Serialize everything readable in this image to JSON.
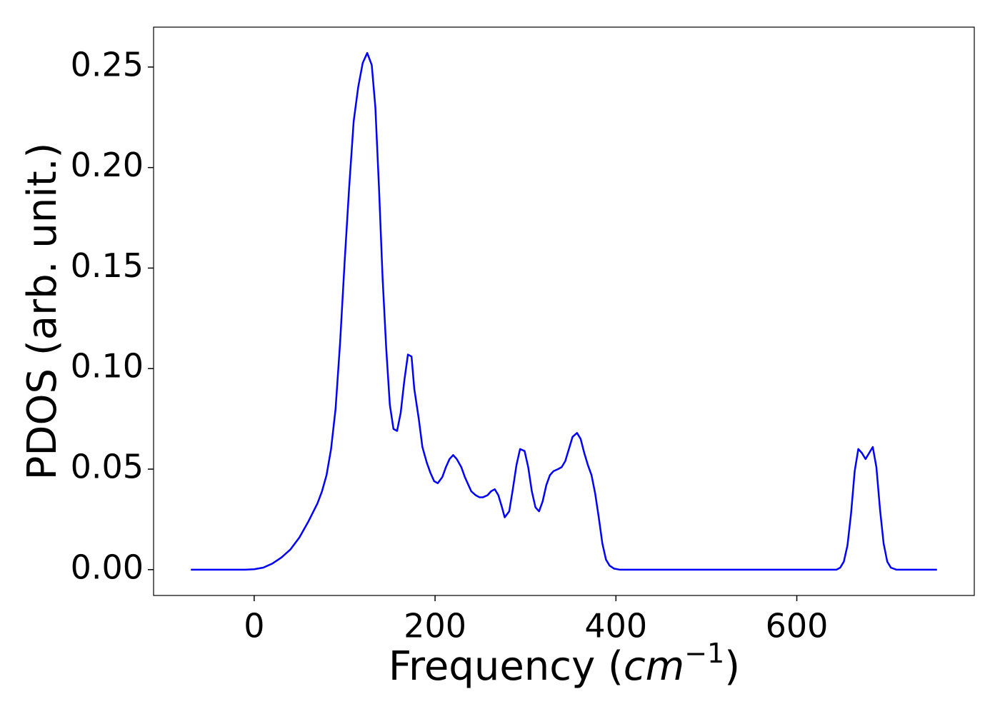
{
  "chart_data": {
    "type": "line",
    "xlabel_parts": [
      "Frequency (",
      "cm",
      "−1",
      ")"
    ],
    "ylabel": "PDOS (arb. unit.)",
    "xlim": [
      -111.25,
      796.25
    ],
    "ylim": [
      -0.01285,
      0.26985
    ],
    "xticks": [
      0,
      200,
      400,
      600
    ],
    "yticks": [
      {
        "value": 0,
        "label": "0.00"
      },
      {
        "value": 0.05,
        "label": "0.05"
      },
      {
        "value": 0.1,
        "label": "0.10"
      },
      {
        "value": 0.15,
        "label": "0.15"
      },
      {
        "value": 0.2,
        "label": "0.20"
      },
      {
        "value": 0.25,
        "label": "0.25"
      }
    ],
    "grid": false,
    "series": [
      {
        "color": "#0000ff",
        "x": [
          -70,
          -10,
          0,
          10,
          20,
          30,
          40,
          50,
          60,
          70,
          75,
          80,
          85,
          90,
          95,
          100,
          105,
          110,
          115,
          120,
          125,
          130,
          134,
          138,
          142,
          146,
          150,
          154,
          158,
          162,
          166,
          170,
          174,
          177,
          182,
          186,
          191,
          195,
          199,
          203,
          208,
          212,
          216,
          220,
          224,
          229,
          233,
          237,
          240,
          245,
          249,
          253,
          258,
          262,
          266,
          270,
          274,
          277,
          282,
          286,
          290,
          294,
          299,
          303,
          307,
          311,
          315,
          319,
          323,
          327,
          331,
          336,
          340,
          344,
          348,
          352,
          357,
          361,
          365,
          369,
          373,
          377,
          381,
          385,
          389,
          393,
          398,
          404,
          644,
          648,
          652,
          656,
          660,
          664,
          668,
          672,
          676,
          680,
          684,
          688,
          692,
          696,
          700,
          704,
          710,
          755
        ],
        "values": [
          0,
          0,
          0.0002,
          0.001,
          0.003,
          0.006,
          0.01,
          0.016,
          0.024,
          0.033,
          0.039,
          0.047,
          0.06,
          0.08,
          0.113,
          0.153,
          0.19,
          0.223,
          0.24,
          0.252,
          0.257,
          0.251,
          0.23,
          0.19,
          0.145,
          0.11,
          0.082,
          0.07,
          0.069,
          0.078,
          0.094,
          0.107,
          0.106,
          0.09,
          0.075,
          0.061,
          0.053,
          0.048,
          0.044,
          0.043,
          0.046,
          0.051,
          0.055,
          0.057,
          0.055,
          0.051,
          0.046,
          0.042,
          0.039,
          0.037,
          0.036,
          0.036,
          0.037,
          0.039,
          0.04,
          0.037,
          0.031,
          0.026,
          0.029,
          0.04,
          0.052,
          0.06,
          0.059,
          0.051,
          0.039,
          0.031,
          0.029,
          0.034,
          0.042,
          0.047,
          0.049,
          0.05,
          0.051,
          0.054,
          0.06,
          0.066,
          0.068,
          0.065,
          0.058,
          0.052,
          0.047,
          0.038,
          0.026,
          0.013,
          0.005,
          0.002,
          0.0005,
          0,
          0,
          0.001,
          0.004,
          0.012,
          0.028,
          0.049,
          0.06,
          0.058,
          0.055,
          0.058,
          0.061,
          0.051,
          0.03,
          0.013,
          0.004,
          0.001,
          0,
          0
        ]
      }
    ]
  }
}
